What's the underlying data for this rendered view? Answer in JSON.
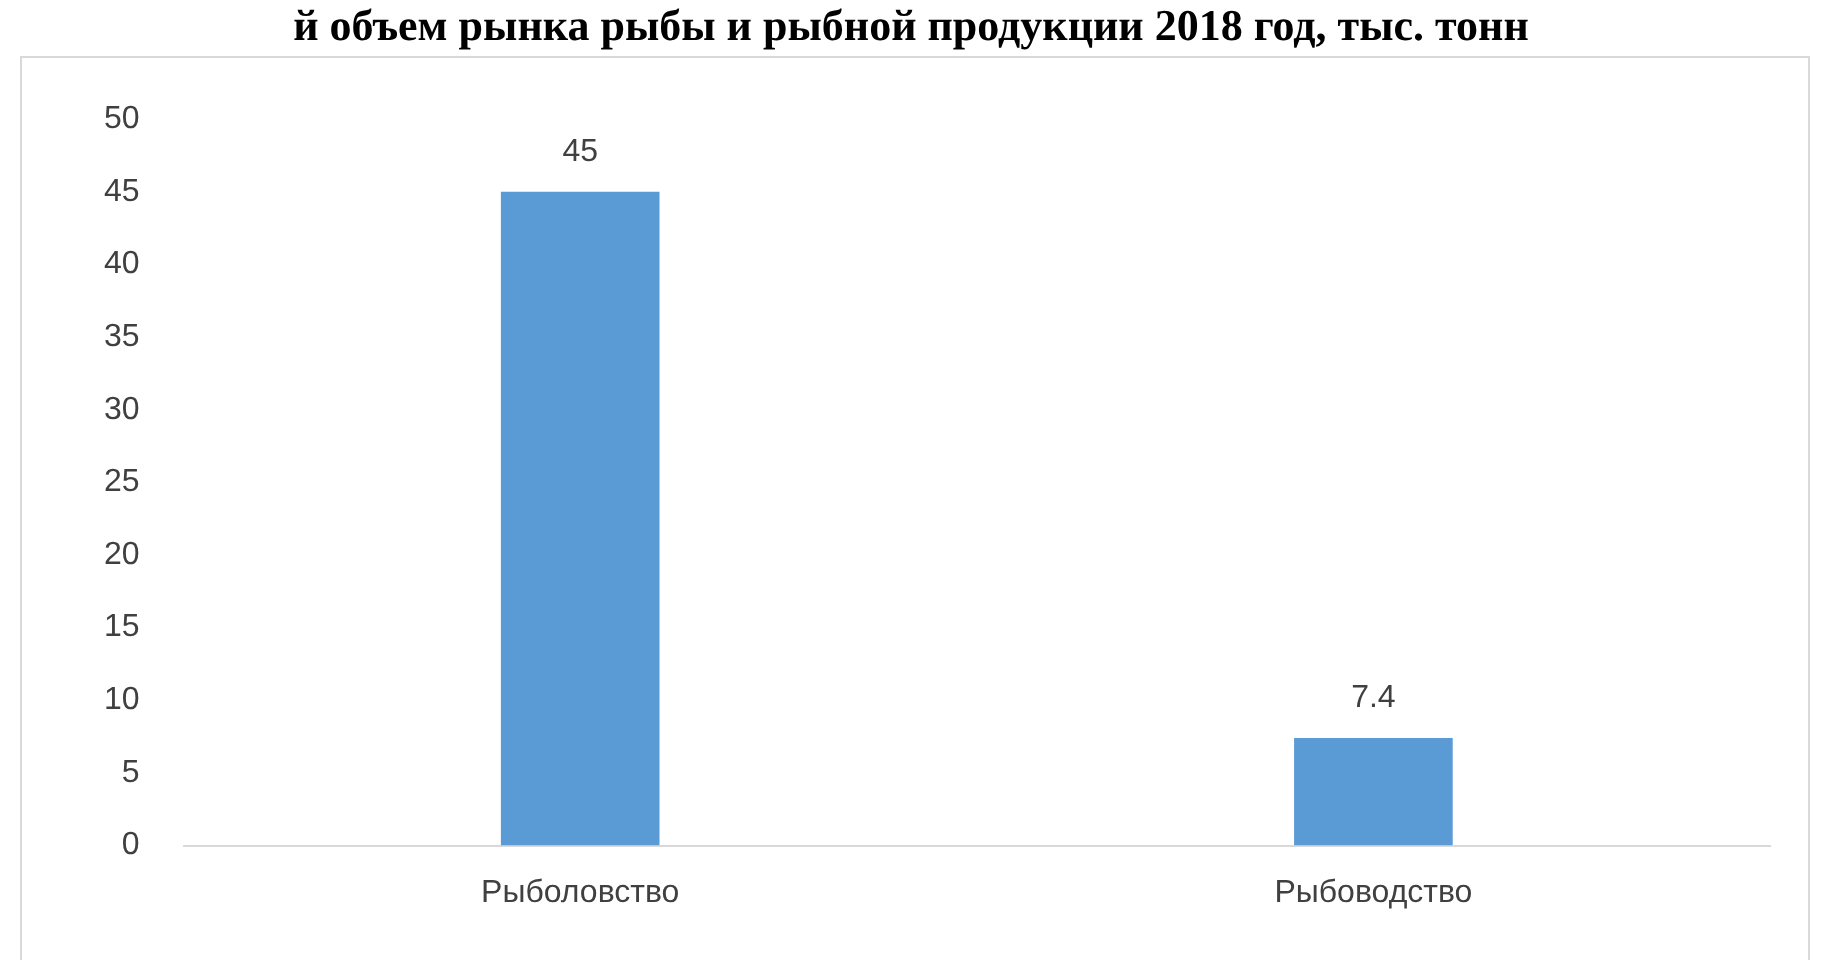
{
  "chart_data": {
    "type": "bar",
    "title": "й объем рынка рыбы и рыбной продукции 2018 год, тыс. тонн",
    "categories": [
      "Рыболовство",
      "Рыбоводство"
    ],
    "values": [
      45,
      7.4
    ],
    "color": "#5b9bd5",
    "ylim": [
      0,
      50
    ],
    "yticks": [
      0,
      5,
      10,
      15,
      20,
      25,
      30,
      35,
      40,
      45,
      50
    ],
    "grid": false,
    "data_labels": true
  }
}
